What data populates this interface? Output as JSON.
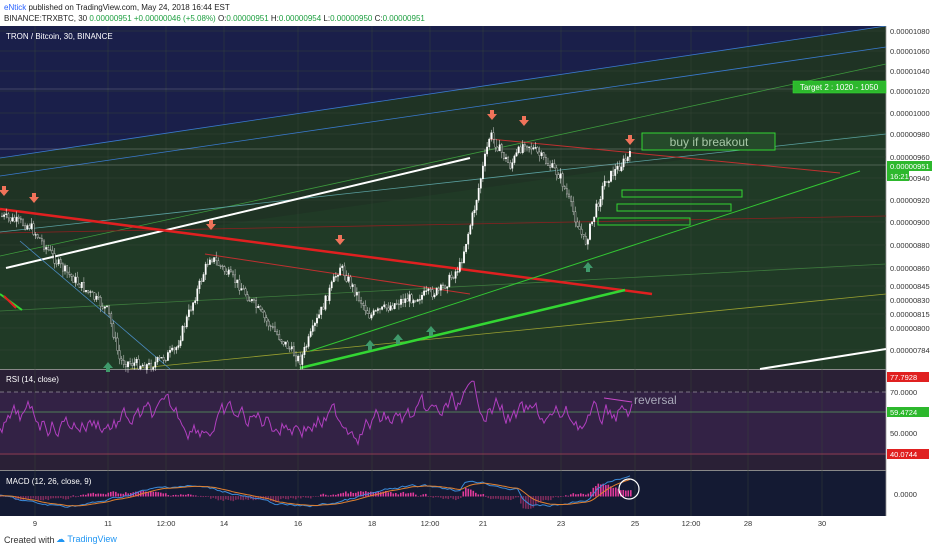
{
  "header": {
    "author": "eNtick",
    "published": " published on TradingView.com, May 24, 2018 16:44 EST",
    "symbol_line": "BINANCE:TRXBTC, 30",
    "last": "0.00000951",
    "change": "+0.00000046 (+5.08%)",
    "ohlc": [
      "O:",
      "0.00000951",
      " H:",
      "0.00000954",
      " L:",
      "0.00000950",
      " C:",
      "0.00000951"
    ]
  },
  "chart_title": "TRON / Bitcoin, 30, BINANCE",
  "price_ticks": [
    "0.00001080",
    "0.00001060",
    "0.00001040",
    "0.00001020",
    "0.00001000",
    "0.00000980",
    "0.00000960",
    "0.00000940",
    "0.00000920",
    "0.00000900",
    "0.00000880",
    "0.00000860",
    "0.00000845",
    "0.00000830",
    "0.00000815",
    "0.00000800",
    "0.00000784"
  ],
  "current_price_label": "0.00000951",
  "countdown_label": "16:21",
  "annotations": {
    "target2": "Target 2 : 1020 - 1050",
    "buy": "buy if breakout",
    "reversal": "reversal"
  },
  "rsi": {
    "title": "RSI (14, close)",
    "ticks": [
      "70.0000",
      "50.0000"
    ],
    "labels": {
      "high": "77.7928",
      "current": "59.4724",
      "low": "40.0744"
    }
  },
  "macd": {
    "title": "MACD (12, 26, close, 9)",
    "tick": "0.0000"
  },
  "time_axis": [
    "9",
    "11",
    "12:00",
    "14",
    "16",
    "18",
    "12:00",
    "21",
    "23",
    "25",
    "12:00",
    "28",
    "30"
  ],
  "footer": {
    "created": "Created with",
    "brand": "TradingView"
  },
  "colors": {
    "bg_main": "#1b2a1e",
    "candle_up": "#ffffff",
    "candle_down": "#e0e0e0",
    "rsi_line": "#b03fbf",
    "arrow_down": "#f0735a",
    "arrow_up": "#3f9a6b",
    "support": "#33d633",
    "resistance": "#e02020"
  },
  "chart_data": {
    "type": "candlestick",
    "title": "TRON / Bitcoin, 30, BINANCE",
    "x_ticks": [
      "9",
      "11",
      "12:00",
      "14",
      "16",
      "18",
      "12:00",
      "21",
      "23",
      "25",
      "12:00",
      "28",
      "30"
    ],
    "y_ticks": [
      1.08e-05,
      1.06e-05,
      1.04e-05,
      1.02e-05,
      1e-05,
      9.8e-06,
      9.6e-06,
      9.4e-06,
      9.2e-06,
      9e-06,
      8.8e-06,
      8.6e-06,
      8.45e-06,
      8.3e-06,
      8.15e-06,
      8e-06,
      7.84e-06
    ],
    "price_keypoints": [
      {
        "x": "9",
        "y": 9.05e-06
      },
      {
        "x": "11",
        "y": 7.9e-06
      },
      {
        "x": "12:00",
        "y": 8e-06
      },
      {
        "x": "14",
        "y": 8.7e-06
      },
      {
        "x": "16",
        "y": 7.9e-06
      },
      {
        "x": "17",
        "y": 8.8e-06
      },
      {
        "x": "18",
        "y": 8.2e-06
      },
      {
        "x": "20",
        "y": 8.7e-06
      },
      {
        "x": "21",
        "y": 9.75e-06
      },
      {
        "x": "22",
        "y": 9.65e-06
      },
      {
        "x": "23",
        "y": 8.85e-06
      },
      {
        "x": "24",
        "y": 9.51e-06
      }
    ],
    "last_price": 9.51e-06,
    "indicators": [
      {
        "name": "RSI (14, close)",
        "ticks": [
          70,
          50
        ],
        "high": 77.7928,
        "current": 59.4724,
        "low": 40.0744
      },
      {
        "name": "MACD (12, 26, close, 9)",
        "ticks": [
          0
        ]
      }
    ]
  }
}
